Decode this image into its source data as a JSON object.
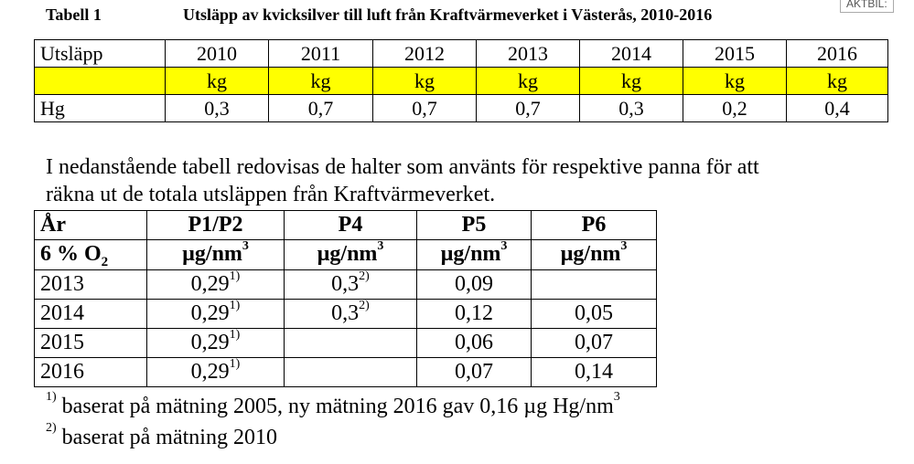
{
  "header": {
    "label": "Tabell 1",
    "title": "Utsläpp av kvicksilver till luft från Kraftvärmeverket i Västerås, 2010-2016",
    "stamp": "AKTBIL:"
  },
  "table1": {
    "columns": [
      "Utsläpp",
      "2010",
      "2011",
      "2012",
      "2013",
      "2014",
      "2015",
      "2016"
    ],
    "units": [
      "kg",
      "kg",
      "kg",
      "kg",
      "kg",
      "kg",
      "kg"
    ],
    "rows": [
      [
        "Hg",
        "0,3",
        "0,7",
        "0,7",
        "0,7",
        "0,3",
        "0,2",
        "0,4"
      ]
    ]
  },
  "paragraph": [
    "I nedanstående tabell redovisas de halter som använts för respektive panna för att",
    "räkna ut de totala utsläppen från Kraftvärmeverket."
  ],
  "table2": {
    "columns": [
      "År",
      "P1/P2",
      "P4",
      "P5",
      "P6"
    ],
    "units": [
      {
        "text": "6 % O",
        "sub": "2"
      },
      {
        "text": "µg/nm",
        "sup": "3"
      },
      {
        "text": "µg/nm",
        "sup": "3"
      },
      {
        "text": "µg/nm",
        "sup": "3"
      },
      {
        "text": "µg/nm",
        "sup": "3"
      }
    ],
    "rows": [
      [
        {
          "text": "2013"
        },
        {
          "text": "0,29",
          "sup": "1)"
        },
        {
          "text": "0,3",
          "sup": "2)"
        },
        {
          "text": "0,09"
        },
        null
      ],
      [
        {
          "text": "2014"
        },
        {
          "text": "0,29",
          "sup": "1)"
        },
        {
          "text": "0,3",
          "sup": "2)"
        },
        {
          "text": "0,12"
        },
        {
          "text": "0,05"
        }
      ],
      [
        {
          "text": "2015"
        },
        {
          "text": "0,29",
          "sup": "1)"
        },
        null,
        {
          "text": "0,06"
        },
        {
          "text": "0,07"
        }
      ],
      [
        {
          "text": "2016"
        },
        {
          "text": "0,29",
          "sup": "1)"
        },
        null,
        {
          "text": "0,07"
        },
        {
          "text": "0,14"
        }
      ]
    ]
  },
  "footnotes": [
    {
      "mark": "1)",
      "text": "baserat på mätning 2005, ny mätning 2016 gav 0,16 µg Hg/nm",
      "sup": "3"
    },
    {
      "mark": "2)",
      "text": "baserat på mätning 2010"
    }
  ]
}
